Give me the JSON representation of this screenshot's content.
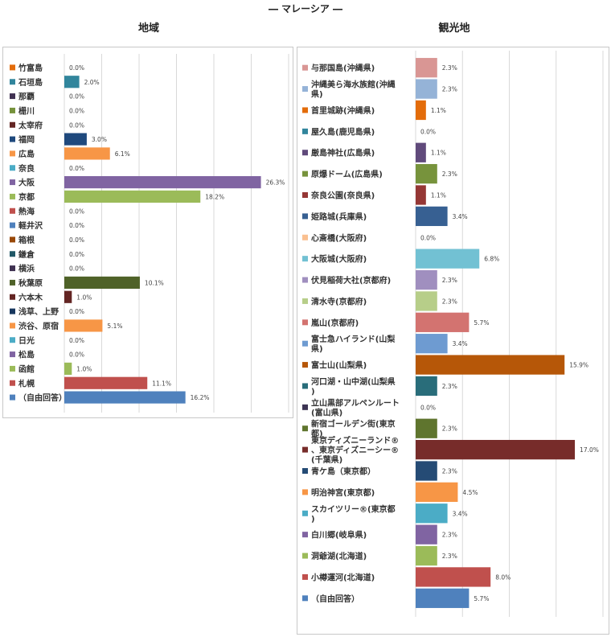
{
  "page": {
    "title": "― マレーシア ―"
  },
  "chart_data": [
    {
      "type": "bar",
      "title": "地域",
      "xlim": [
        0,
        30
      ],
      "grid": true,
      "legend": "left",
      "value_format": "percent-1dp",
      "categories": [
        "竹富島",
        "石垣島",
        "那覇",
        "栅川",
        "太宰府",
        "福岡",
        "広島",
        "奈良",
        "大阪",
        "京都",
        "熱海",
        "軽井沢",
        "箱根",
        "鎌倉",
        "横浜",
        "秋葉原",
        "六本木",
        "浅草、上野",
        "渋谷、原宿",
        "日光",
        "松島",
        "函館",
        "札幌",
        "（自由回答）"
      ],
      "values": [
        0.0,
        2.0,
        0.0,
        0.0,
        0.0,
        3.0,
        6.1,
        0.0,
        26.3,
        18.2,
        0.0,
        0.0,
        0.0,
        0.0,
        0.0,
        10.1,
        1.0,
        0.0,
        5.1,
        0.0,
        0.0,
        1.0,
        11.1,
        16.2
      ],
      "colors": [
        "#E36C0A",
        "#31859C",
        "#403152",
        "#76923C",
        "#632523",
        "#1F497D",
        "#F79646",
        "#4BACC6",
        "#8064A2",
        "#9BBB59",
        "#C0504D",
        "#4F81BD",
        "#984807",
        "#215867",
        "#3F3151",
        "#4F6228",
        "#632523",
        "#17375E",
        "#F79646",
        "#4BACC6",
        "#8064A2",
        "#9BBB59",
        "#C0504D",
        "#4F81BD"
      ]
    },
    {
      "type": "bar",
      "title": "観光地",
      "xlim": [
        0,
        20
      ],
      "grid": true,
      "legend": "left",
      "value_format": "percent-1dp",
      "categories": [
        "与那国島(沖縄県)",
        "沖縄美ら海水族館(沖縄県)",
        "首里城跡(沖縄県)",
        "屋久島(鹿児島県)",
        "厳島神社(広島県)",
        "原爆ドーム(広島県)",
        "奈良公園(奈良県)",
        "姫路城(兵庫県)",
        "心斎橋(大阪府)",
        "大阪城(大阪府)",
        "伏見稲荷大社(京都府)",
        "清水寺(京都府)",
        "嵐山(京都府)",
        "富士急ハイランド(山梨県)",
        "富士山(山梨県)",
        "河口湖・山中湖(山梨県)",
        "立山黒部アルペンルート(富山県)",
        "新宿ゴールデン街(東京都)",
        "東京ディズニーランド®、東京ディズニーシー®(千葉県)",
        "青ケ島（東京都）",
        "明治神宮(東京都)",
        "スカイツリー®(東京都)",
        "白川郷(岐阜県)",
        "洞爺湖(北海道)",
        "小樽運河(北海道)",
        "（自由回答）"
      ],
      "values": [
        2.3,
        2.3,
        1.1,
        0.0,
        1.1,
        2.3,
        1.1,
        3.4,
        0.0,
        6.8,
        2.3,
        2.3,
        5.7,
        3.4,
        15.9,
        2.3,
        0.0,
        2.3,
        17.0,
        2.3,
        4.5,
        3.4,
        2.3,
        2.3,
        8.0,
        5.7
      ],
      "colors": [
        "#D99694",
        "#95B3D7",
        "#E36C0A",
        "#31859C",
        "#604A7B",
        "#77933C",
        "#953735",
        "#376092",
        "#FAC090",
        "#72C1D3",
        "#A08FBF",
        "#B7CE89",
        "#D37370",
        "#6E9BD1",
        "#B65708",
        "#296D7A",
        "#3D3554",
        "#5F752E",
        "#772C2A",
        "#254B75",
        "#F79646",
        "#4BACC6",
        "#8064A2",
        "#9BBB59",
        "#C0504D",
        "#4F81BD"
      ]
    }
  ]
}
